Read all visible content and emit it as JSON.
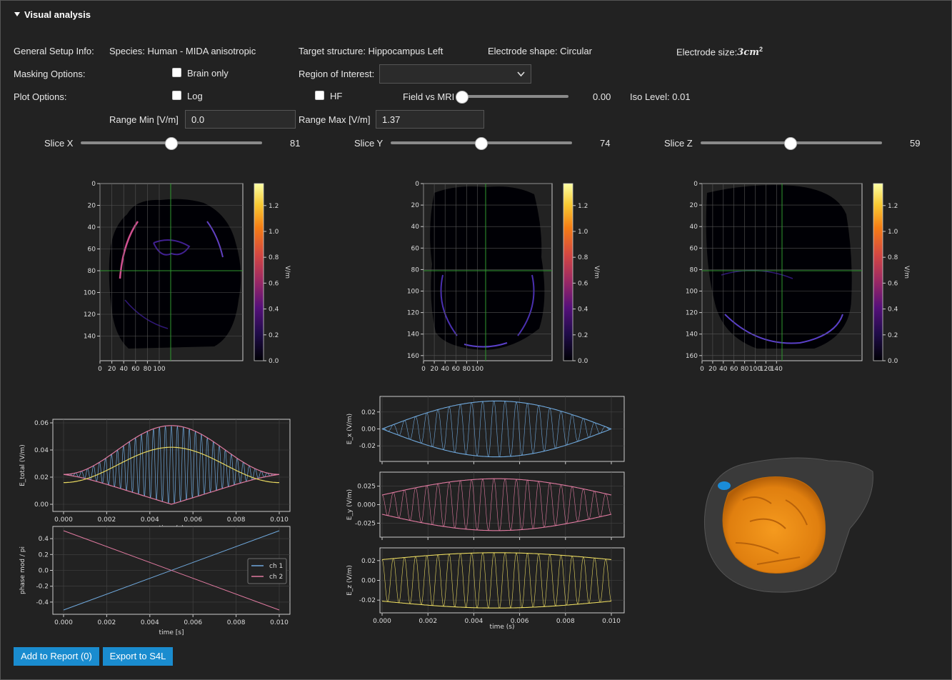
{
  "section": {
    "title": "Visual analysis"
  },
  "setup": {
    "label": "General Setup Info:",
    "species": "Species: Human - MIDA anisotropic",
    "target": "Target structure: Hippocampus Left",
    "electrode_shape": "Electrode shape: Circular",
    "electrode_size_prefix": "Electrode size:",
    "electrode_size_value": "3cm",
    "electrode_size_exp": "2"
  },
  "masking": {
    "label": "Masking Options:",
    "brain_only": "Brain only",
    "roi_label": "Region of Interest:",
    "roi_value": ""
  },
  "plot_options": {
    "label": "Plot Options:",
    "log": "Log",
    "hf": "HF",
    "field_vs_mri_label": "Field vs MRI",
    "field_vs_mri_value": "0.00",
    "field_vs_mri_level": 0.0,
    "iso_level": "Iso Level: 0.01"
  },
  "range": {
    "min_label": "Range Min [V/m]",
    "min_value": "0.0",
    "max_label": "Range Max [V/m]",
    "max_value": "1.37"
  },
  "slices": {
    "x": {
      "label": "Slice X",
      "value": "81",
      "level": 0.5
    },
    "y": {
      "label": "Slice Y",
      "value": "74",
      "level": 0.5
    },
    "z": {
      "label": "Slice Z",
      "value": "59",
      "level": 0.5
    }
  },
  "slice_plots": [
    {
      "yticks": [
        "0",
        "20",
        "40",
        "60",
        "80",
        "100",
        "120",
        "140"
      ],
      "xticks": [
        "0",
        "20",
        "40",
        "60",
        "80",
        "100"
      ],
      "cbar_label": "V/m",
      "cbar_ticks": [
        "0.0",
        "0.2",
        "0.4",
        "0.6",
        "0.8",
        "1.0",
        "1.2"
      ]
    },
    {
      "yticks": [
        "0",
        "20",
        "40",
        "60",
        "80",
        "100",
        "120",
        "140",
        "160"
      ],
      "xticks": [
        "0",
        "20",
        "40",
        "60",
        "80",
        "100"
      ],
      "cbar_label": "V/m",
      "cbar_ticks": [
        "0.0",
        "0.2",
        "0.4",
        "0.6",
        "0.8",
        "1.0",
        "1.2"
      ]
    },
    {
      "yticks": [
        "0",
        "20",
        "40",
        "60",
        "80",
        "100",
        "120",
        "140",
        "160"
      ],
      "xticks": [
        "0",
        "20",
        "40",
        "60",
        "80",
        "100",
        "120",
        "140"
      ],
      "cbar_label": "V/m",
      "cbar_ticks": [
        "0.0",
        "0.2",
        "0.4",
        "0.6",
        "0.8",
        "1.0",
        "1.2"
      ]
    }
  ],
  "chart_data": [
    {
      "type": "line",
      "ylabel": "E_total (V/m)",
      "xlabel": "time (s)",
      "xlim": [
        0,
        0.01
      ],
      "ylim": [
        0,
        0.06
      ],
      "xticks": [
        "0.000",
        "0.002",
        "0.004",
        "0.006",
        "0.008",
        "0.010"
      ],
      "yticks": [
        "0.00",
        "0.02",
        "0.04",
        "0.06"
      ],
      "series_colors": [
        "#6fa8dc",
        "#e07aa0",
        "#e8d860"
      ]
    },
    {
      "type": "line",
      "ylabel": "phase mod / pi",
      "xlabel": "time [s]",
      "xlim": [
        0,
        0.01
      ],
      "ylim": [
        -0.5,
        0.5
      ],
      "xticks": [
        "0.000",
        "0.002",
        "0.004",
        "0.006",
        "0.008",
        "0.010"
      ],
      "yticks": [
        "0.4",
        "0.2",
        "0.0",
        "-0.2",
        "-0.4"
      ],
      "series": [
        {
          "name": "ch 1",
          "color": "#6fa8dc",
          "x": [
            0,
            0.01
          ],
          "y": [
            -0.5,
            0.5
          ]
        },
        {
          "name": "ch 2",
          "color": "#e07aa0",
          "x": [
            0,
            0.01
          ],
          "y": [
            0.5,
            -0.5
          ]
        }
      ]
    },
    {
      "type": "line",
      "ylabel": "E_x (V/m)",
      "xlim": [
        0,
        0.01
      ],
      "ylim": [
        -0.035,
        0.035
      ],
      "yticks": [
        "0.02",
        "0.00",
        "-0.02"
      ],
      "amplitude": 0.033,
      "color": "#6fa8dc"
    },
    {
      "type": "line",
      "ylabel": "E_y (V/m)",
      "xlim": [
        0,
        0.01
      ],
      "ylim": [
        -0.04,
        0.04
      ],
      "yticks": [
        "0.025",
        "0.000",
        "-0.025"
      ],
      "amplitude": 0.035,
      "color": "#e07aa0"
    },
    {
      "type": "line",
      "ylabel": "E_z (V/m)",
      "xlabel": "time (s)",
      "xlim": [
        0,
        0.01
      ],
      "ylim": [
        -0.03,
        0.03
      ],
      "xticks": [
        "0.000",
        "0.002",
        "0.004",
        "0.006",
        "0.008",
        "0.010"
      ],
      "yticks": [
        "0.02",
        "0.00",
        "-0.02"
      ],
      "amplitude": 0.028,
      "color": "#e8d860"
    }
  ],
  "buttons": {
    "add_report": "Add to Report (0)",
    "export": "Export to S4L"
  }
}
